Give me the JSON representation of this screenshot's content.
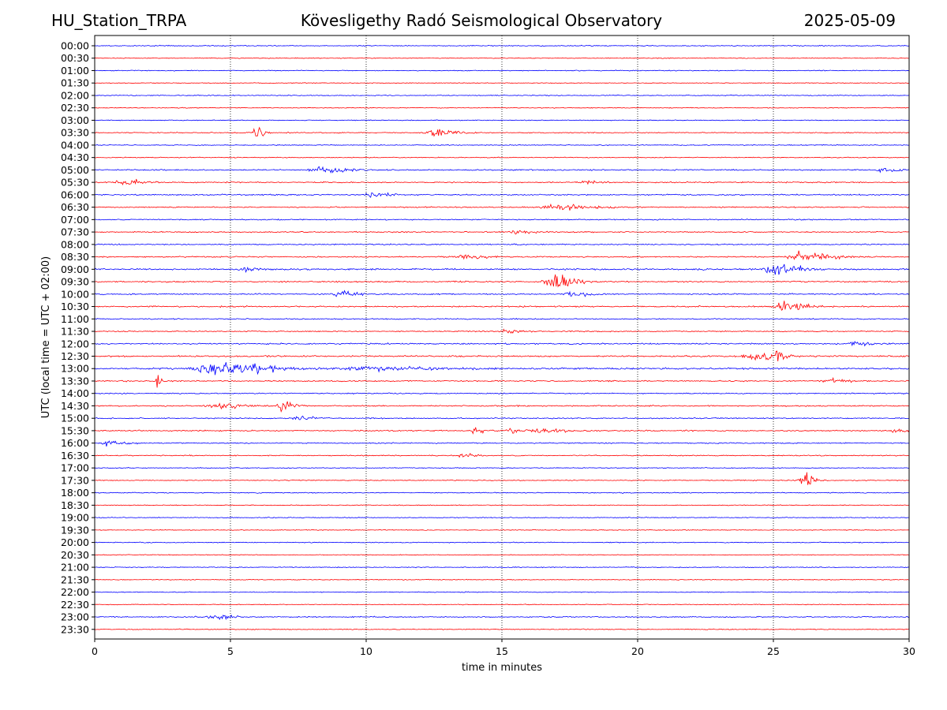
{
  "header": {
    "station": "HU_Station_TRPA",
    "observatory": "Kövesligethy Radó Seismological Observatory",
    "date": "2025-05-09"
  },
  "chart_data": {
    "type": "line",
    "xlabel": "time in minutes",
    "ylabel": "UTC (local time = UTC + 02:00)",
    "xlim": [
      0,
      30
    ],
    "xticks": [
      "0",
      "5",
      "10",
      "15",
      "20",
      "25",
      "30"
    ],
    "grid": "vertical dotted at each x tick",
    "colors": {
      "even_rows": "#0000ff",
      "odd_rows": "#ff0000"
    },
    "rows": [
      "00:00",
      "00:30",
      "01:00",
      "01:30",
      "02:00",
      "02:30",
      "03:00",
      "03:30",
      "04:00",
      "04:30",
      "05:00",
      "05:30",
      "06:00",
      "06:30",
      "07:00",
      "07:30",
      "08:00",
      "08:30",
      "09:00",
      "09:30",
      "10:00",
      "10:30",
      "11:00",
      "11:30",
      "12:00",
      "12:30",
      "13:00",
      "13:30",
      "14:00",
      "14:30",
      "15:00",
      "15:30",
      "16:00",
      "16:30",
      "17:00",
      "17:30",
      "18:00",
      "18:30",
      "19:00",
      "19:30",
      "20:00",
      "20:30",
      "21:00",
      "21:30",
      "22:00",
      "22:30",
      "23:00",
      "23:30"
    ],
    "noise_level": [
      0.35,
      0.3,
      0.35,
      0.3,
      0.35,
      0.3,
      0.35,
      0.4,
      0.35,
      0.35,
      0.5,
      0.45,
      0.5,
      0.45,
      0.45,
      0.45,
      0.45,
      0.5,
      0.6,
      0.55,
      0.5,
      0.55,
      0.45,
      0.45,
      0.55,
      0.6,
      0.7,
      0.5,
      0.45,
      0.5,
      0.45,
      0.5,
      0.45,
      0.4,
      0.35,
      0.35,
      0.35,
      0.3,
      0.35,
      0.3,
      0.35,
      0.3,
      0.35,
      0.3,
      0.35,
      0.3,
      0.45,
      0.35
    ],
    "events": [
      {
        "row": "03:30",
        "minute": 5.9,
        "amp": 4.5,
        "dur": 0.5
      },
      {
        "row": "03:30",
        "minute": 12.5,
        "amp": 2.5,
        "dur": 1.5
      },
      {
        "row": "05:00",
        "minute": 8.3,
        "amp": 2.2,
        "dur": 1.5
      },
      {
        "row": "05:00",
        "minute": 29.0,
        "amp": 1.6,
        "dur": 1.2
      },
      {
        "row": "05:30",
        "minute": 1.0,
        "amp": 2.6,
        "dur": 1.2
      },
      {
        "row": "05:30",
        "minute": 18.0,
        "amp": 1.5,
        "dur": 1.0
      },
      {
        "row": "06:00",
        "minute": 10.2,
        "amp": 1.8,
        "dur": 1.0
      },
      {
        "row": "06:30",
        "minute": 17.0,
        "amp": 2.2,
        "dur": 2.0
      },
      {
        "row": "07:30",
        "minute": 15.5,
        "amp": 1.8,
        "dur": 1.2
      },
      {
        "row": "08:30",
        "minute": 26.0,
        "amp": 3.5,
        "dur": 2.0
      },
      {
        "row": "08:30",
        "minute": 13.5,
        "amp": 1.4,
        "dur": 1.5
      },
      {
        "row": "09:00",
        "minute": 25.0,
        "amp": 4.5,
        "dur": 1.5
      },
      {
        "row": "09:00",
        "minute": 5.5,
        "amp": 1.4,
        "dur": 1.0
      },
      {
        "row": "09:30",
        "minute": 16.9,
        "amp": 7.5,
        "dur": 1.2
      },
      {
        "row": "10:00",
        "minute": 9.0,
        "amp": 1.8,
        "dur": 1.2
      },
      {
        "row": "10:00",
        "minute": 17.5,
        "amp": 1.6,
        "dur": 1.2
      },
      {
        "row": "10:30",
        "minute": 25.3,
        "amp": 4.5,
        "dur": 1.5
      },
      {
        "row": "11:30",
        "minute": 15.2,
        "amp": 1.5,
        "dur": 1.0
      },
      {
        "row": "12:00",
        "minute": 28.0,
        "amp": 1.3,
        "dur": 1.0
      },
      {
        "row": "12:30",
        "minute": 24.2,
        "amp": 3.5,
        "dur": 1.5
      },
      {
        "row": "12:30",
        "minute": 25.1,
        "amp": 4.0,
        "dur": 0.4
      },
      {
        "row": "13:00",
        "minute": 4.5,
        "amp": 5.5,
        "dur": 3.0
      },
      {
        "row": "13:00",
        "minute": 10.0,
        "amp": 1.4,
        "dur": 4.0
      },
      {
        "row": "13:30",
        "minute": 2.3,
        "amp": 5.0,
        "dur": 0.3
      },
      {
        "row": "13:30",
        "minute": 27.0,
        "amp": 1.4,
        "dur": 1.0
      },
      {
        "row": "14:30",
        "minute": 6.9,
        "amp": 6.5,
        "dur": 0.6
      },
      {
        "row": "14:30",
        "minute": 4.5,
        "amp": 2.0,
        "dur": 1.5
      },
      {
        "row": "15:00",
        "minute": 7.5,
        "amp": 2.0,
        "dur": 0.8
      },
      {
        "row": "15:30",
        "minute": 14.0,
        "amp": 2.8,
        "dur": 0.6
      },
      {
        "row": "15:30",
        "minute": 15.3,
        "amp": 3.2,
        "dur": 0.6
      },
      {
        "row": "15:30",
        "minute": 16.5,
        "amp": 2.0,
        "dur": 1.5
      },
      {
        "row": "15:30",
        "minute": 29.5,
        "amp": 2.2,
        "dur": 0.6
      },
      {
        "row": "16:00",
        "minute": 0.5,
        "amp": 2.0,
        "dur": 1.0
      },
      {
        "row": "16:30",
        "minute": 13.5,
        "amp": 1.5,
        "dur": 0.8
      },
      {
        "row": "17:30",
        "minute": 26.1,
        "amp": 7.0,
        "dur": 0.6
      },
      {
        "row": "23:00",
        "minute": 4.4,
        "amp": 2.8,
        "dur": 0.9
      }
    ]
  }
}
